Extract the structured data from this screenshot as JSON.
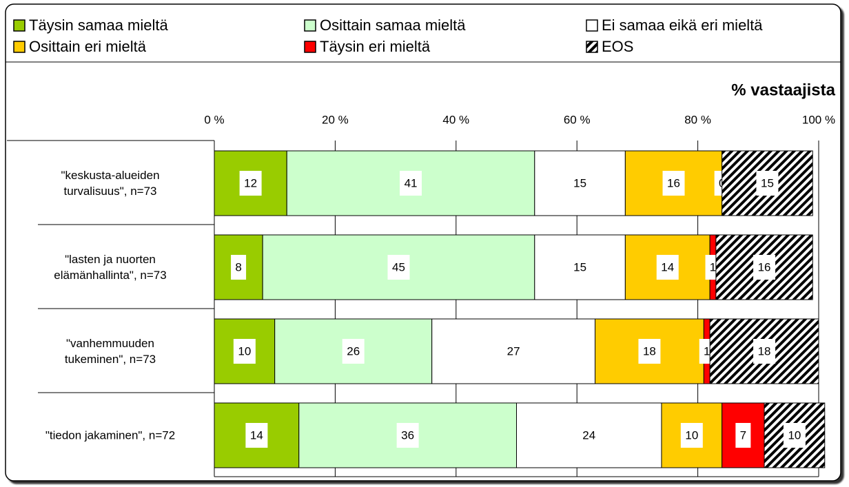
{
  "chart_data": {
    "type": "stacked_barh",
    "xlabel": "% vastaajista",
    "categories": [
      "\"keskusta-alueiden\nturvalisuus\", n=73",
      "\"lasten ja nuorten\nelämänhallinta\", n=73",
      "\"vanhemmuuden\ntukeminen\", n=73",
      "\"tiedon jakaminen\", n=72"
    ],
    "series": [
      {
        "name": "Täysin samaa mieltä",
        "color": "#99cc00",
        "values": [
          12,
          8,
          10,
          14
        ]
      },
      {
        "name": "Osittain samaa mieltä",
        "color": "#ccffcc",
        "values": [
          41,
          45,
          26,
          36
        ]
      },
      {
        "name": "Ei samaa eikä eri mieltä",
        "color": "#ffffff",
        "values": [
          15,
          15,
          27,
          24
        ]
      },
      {
        "name": "Osittain eri mieltä",
        "color": "#ffcc00",
        "values": [
          16,
          14,
          18,
          10
        ]
      },
      {
        "name": "Täysin eri mieltä",
        "color": "#ff0000",
        "values": [
          0,
          1,
          1,
          7
        ]
      },
      {
        "name": "EOS",
        "color": "#000000",
        "pattern": "hatch",
        "values": [
          15,
          16,
          18,
          10
        ]
      }
    ],
    "xlim": [
      0,
      100
    ],
    "xticks": [
      {
        "value": 0,
        "label": "0 %"
      },
      {
        "value": 20,
        "label": "20 %"
      },
      {
        "value": 40,
        "label": "40 %"
      },
      {
        "value": 60,
        "label": "60 %"
      },
      {
        "value": 80,
        "label": "80 %"
      },
      {
        "value": 100,
        "label": "100 %"
      }
    ],
    "grid": true,
    "legend": "top"
  }
}
